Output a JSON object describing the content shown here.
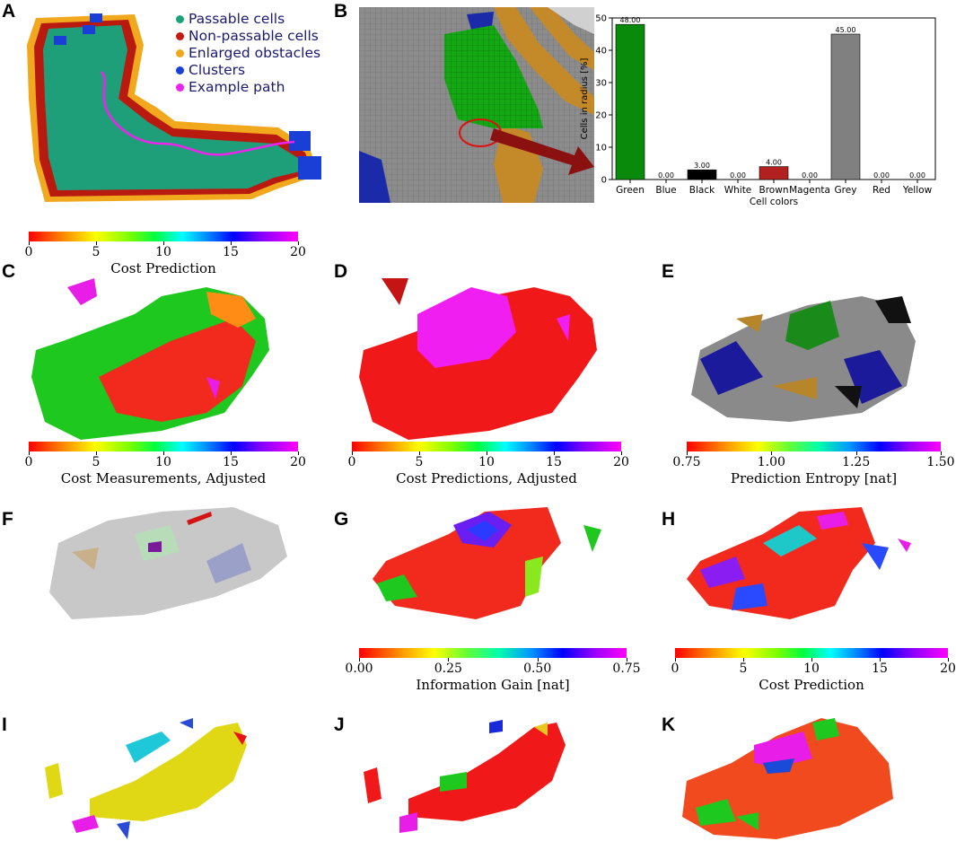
{
  "panels": {
    "a": "A",
    "b": "B",
    "c": "C",
    "d": "D",
    "e": "E",
    "f": "F",
    "g": "G",
    "h": "H",
    "i": "I",
    "j": "J",
    "k": "K"
  },
  "legend": {
    "items": [
      {
        "label": "Passable cells",
        "color": "#1aa37a"
      },
      {
        "label": "Non-passable cells",
        "color": "#c41a10"
      },
      {
        "label": "Enlarged obstacles",
        "color": "#f2a81d"
      },
      {
        "label": "Clusters",
        "color": "#1a3fd6"
      },
      {
        "label": "Example path",
        "color": "#ee22ee"
      }
    ]
  },
  "colorbars": {
    "top": {
      "label": "Cost Prediction",
      "ticks": [
        "0",
        "5",
        "10",
        "15",
        "20"
      ]
    },
    "c": {
      "label": "Cost Measurements, Adjusted",
      "ticks": [
        "0",
        "5",
        "10",
        "15",
        "20"
      ]
    },
    "d": {
      "label": "Cost Predictions, Adjusted",
      "ticks": [
        "0",
        "5",
        "10",
        "15",
        "20"
      ]
    },
    "e": {
      "label": "Prediction Entropy [nat]",
      "ticks": [
        "0.75",
        "1.00",
        "1.25",
        "1.50"
      ]
    },
    "g": {
      "label": "Information Gain [nat]",
      "ticks": [
        "0.00",
        "0.25",
        "0.50",
        "0.75"
      ]
    },
    "h": {
      "label": "Cost Prediction",
      "ticks": [
        "0",
        "5",
        "10",
        "15",
        "20"
      ]
    }
  },
  "chart_data": {
    "type": "bar",
    "categories": [
      "Green",
      "Blue",
      "Black",
      "White",
      "Brown",
      "Magenta",
      "Grey",
      "Red",
      "Yellow"
    ],
    "values": [
      48.0,
      0.0,
      3.0,
      0.0,
      4.0,
      0.0,
      45.0,
      0.0,
      0.0
    ],
    "value_labels": [
      "48.00",
      "0.00",
      "3.00",
      "0.00",
      "4.00",
      "0.00",
      "45.00",
      "0.00",
      "0.00"
    ],
    "colors": [
      "#0a8a0a",
      "#1f2fd0",
      "#000000",
      "#ffffff",
      "#b32020",
      "#d020d0",
      "#808080",
      "#e01010",
      "#dddd00"
    ],
    "xlabel": "Cell colors",
    "ylabel": "Cells in radius [%]",
    "ylim": [
      0,
      50
    ],
    "yticks": [
      "0",
      "10",
      "20",
      "30",
      "40",
      "50"
    ]
  }
}
